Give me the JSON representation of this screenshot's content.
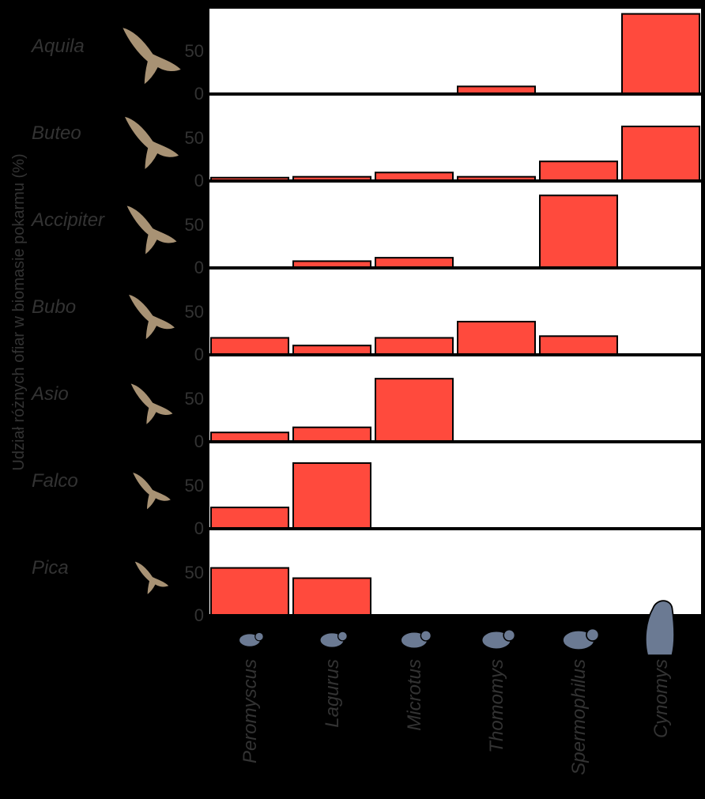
{
  "chart_data": {
    "type": "bar",
    "ylabel": "Udział różnych ofiar w biomasie pokarmu (%)",
    "yticks": [
      0,
      50
    ],
    "ylim": [
      0,
      100
    ],
    "categories": [
      "Peromyscus",
      "Lagurus",
      "Microtus",
      "Thomomys",
      "Spermophilus",
      "Cynomys"
    ],
    "bar_color": "#ff4a3d",
    "bird_color": "#a89274",
    "rodent_color": "#6b7a93",
    "panels": [
      {
        "name": "Aquila",
        "values": [
          0,
          0,
          0,
          8,
          0,
          93
        ]
      },
      {
        "name": "Buteo",
        "values": [
          3,
          4,
          9,
          4,
          22,
          63
        ]
      },
      {
        "name": "Accipiter",
        "values": [
          0,
          7,
          11,
          0,
          84,
          0
        ]
      },
      {
        "name": "Bubo",
        "values": [
          19,
          10,
          19,
          38,
          21,
          0
        ]
      },
      {
        "name": "Asio",
        "values": [
          10,
          16,
          73,
          0,
          0,
          0
        ]
      },
      {
        "name": "Falco",
        "values": [
          24,
          76,
          0,
          0,
          0,
          0
        ]
      },
      {
        "name": "Pica",
        "values": [
          55,
          43,
          0,
          0,
          0,
          0
        ]
      }
    ]
  }
}
